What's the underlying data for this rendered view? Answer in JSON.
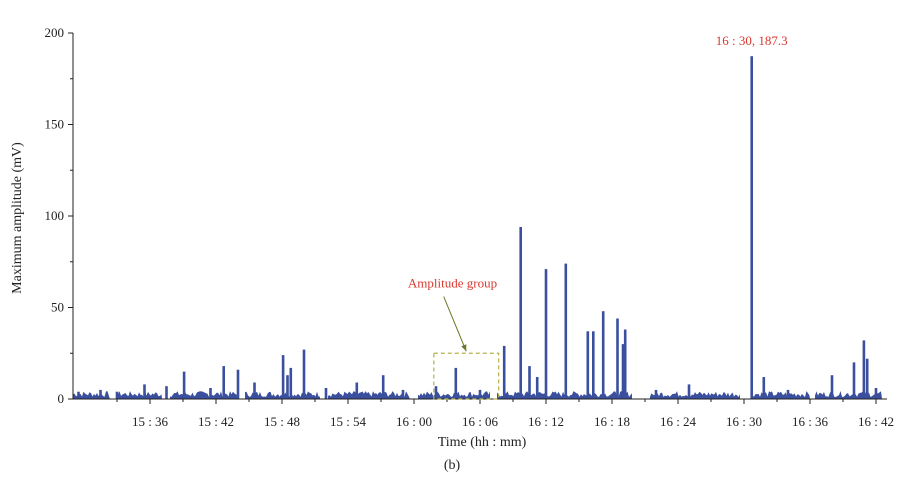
{
  "caption": "(b)",
  "colors": {
    "series": "#3a4f9e",
    "annotation_red": "#d9382e",
    "annotation_box": "#b3b34a",
    "axis": "#222222"
  },
  "chart_data": {
    "type": "bar",
    "xlabel": "Time (hh : mm)",
    "ylabel": "Maximum amplitude (mV)",
    "ylim": [
      0,
      200
    ],
    "yticks": [
      0,
      50,
      100,
      150,
      200
    ],
    "x_range_minutes": [
      "15:29",
      "16:43"
    ],
    "xticks": [
      "15 : 36",
      "15 : 42",
      "15 : 48",
      "15 : 54",
      "16 : 00",
      "16 : 06",
      "16 : 12",
      "16 : 18",
      "16 : 24",
      "16 : 30",
      "16 : 36",
      "16 : 42"
    ],
    "series": [
      {
        "color": "#3a4f9e",
        "points": [
          {
            "t": "15:29.5",
            "v": 4
          },
          {
            "t": "15:31.5",
            "v": 5
          },
          {
            "t": "15:33.0",
            "v": 4
          },
          {
            "t": "15:35.5",
            "v": 8
          },
          {
            "t": "15:37.5",
            "v": 7
          },
          {
            "t": "15:39.1",
            "v": 15
          },
          {
            "t": "15:41.5",
            "v": 6
          },
          {
            "t": "15:42.7",
            "v": 18
          },
          {
            "t": "15:44.0",
            "v": 16
          },
          {
            "t": "15:45.5",
            "v": 9
          },
          {
            "t": "15:48.1",
            "v": 24
          },
          {
            "t": "15:48.5",
            "v": 13
          },
          {
            "t": "15:48.8",
            "v": 17
          },
          {
            "t": "15:50.0",
            "v": 27
          },
          {
            "t": "15:52.0",
            "v": 6
          },
          {
            "t": "15:54.8",
            "v": 9
          },
          {
            "t": "15:57.2",
            "v": 13
          },
          {
            "t": "15:59.0",
            "v": 5
          },
          {
            "t": "16:02.0",
            "v": 7
          },
          {
            "t": "16:03.8",
            "v": 17
          },
          {
            "t": "16:06.0",
            "v": 5
          },
          {
            "t": "16:08.2",
            "v": 29
          },
          {
            "t": "16:09.7",
            "v": 94
          },
          {
            "t": "16:10.5",
            "v": 18
          },
          {
            "t": "16:11.2",
            "v": 12
          },
          {
            "t": "16:12.0",
            "v": 71
          },
          {
            "t": "16:13.8",
            "v": 74
          },
          {
            "t": "16:15.8",
            "v": 37
          },
          {
            "t": "16:16.3",
            "v": 37
          },
          {
            "t": "16:17.2",
            "v": 48
          },
          {
            "t": "16:18.5",
            "v": 44
          },
          {
            "t": "16:19.0",
            "v": 30
          },
          {
            "t": "16:19.2",
            "v": 38
          },
          {
            "t": "16:22.0",
            "v": 5
          },
          {
            "t": "16:25.0",
            "v": 8
          },
          {
            "t": "16:30.7",
            "v": 187.3
          },
          {
            "t": "16:31.8",
            "v": 12
          },
          {
            "t": "16:34.0",
            "v": 5
          },
          {
            "t": "16:38.0",
            "v": 13
          },
          {
            "t": "16:40.0",
            "v": 20
          },
          {
            "t": "16:40.9",
            "v": 32
          },
          {
            "t": "16:41.2",
            "v": 22
          },
          {
            "t": "16:42.0",
            "v": 6
          }
        ]
      }
    ],
    "annotations": [
      {
        "text": "16 : 30, 187.3",
        "t": "16:30.7",
        "v": 187.3
      },
      {
        "text": "Amplitude group",
        "box_t": [
          "16:01.8",
          "16:07.7"
        ],
        "box_v": [
          0,
          25
        ]
      }
    ]
  }
}
